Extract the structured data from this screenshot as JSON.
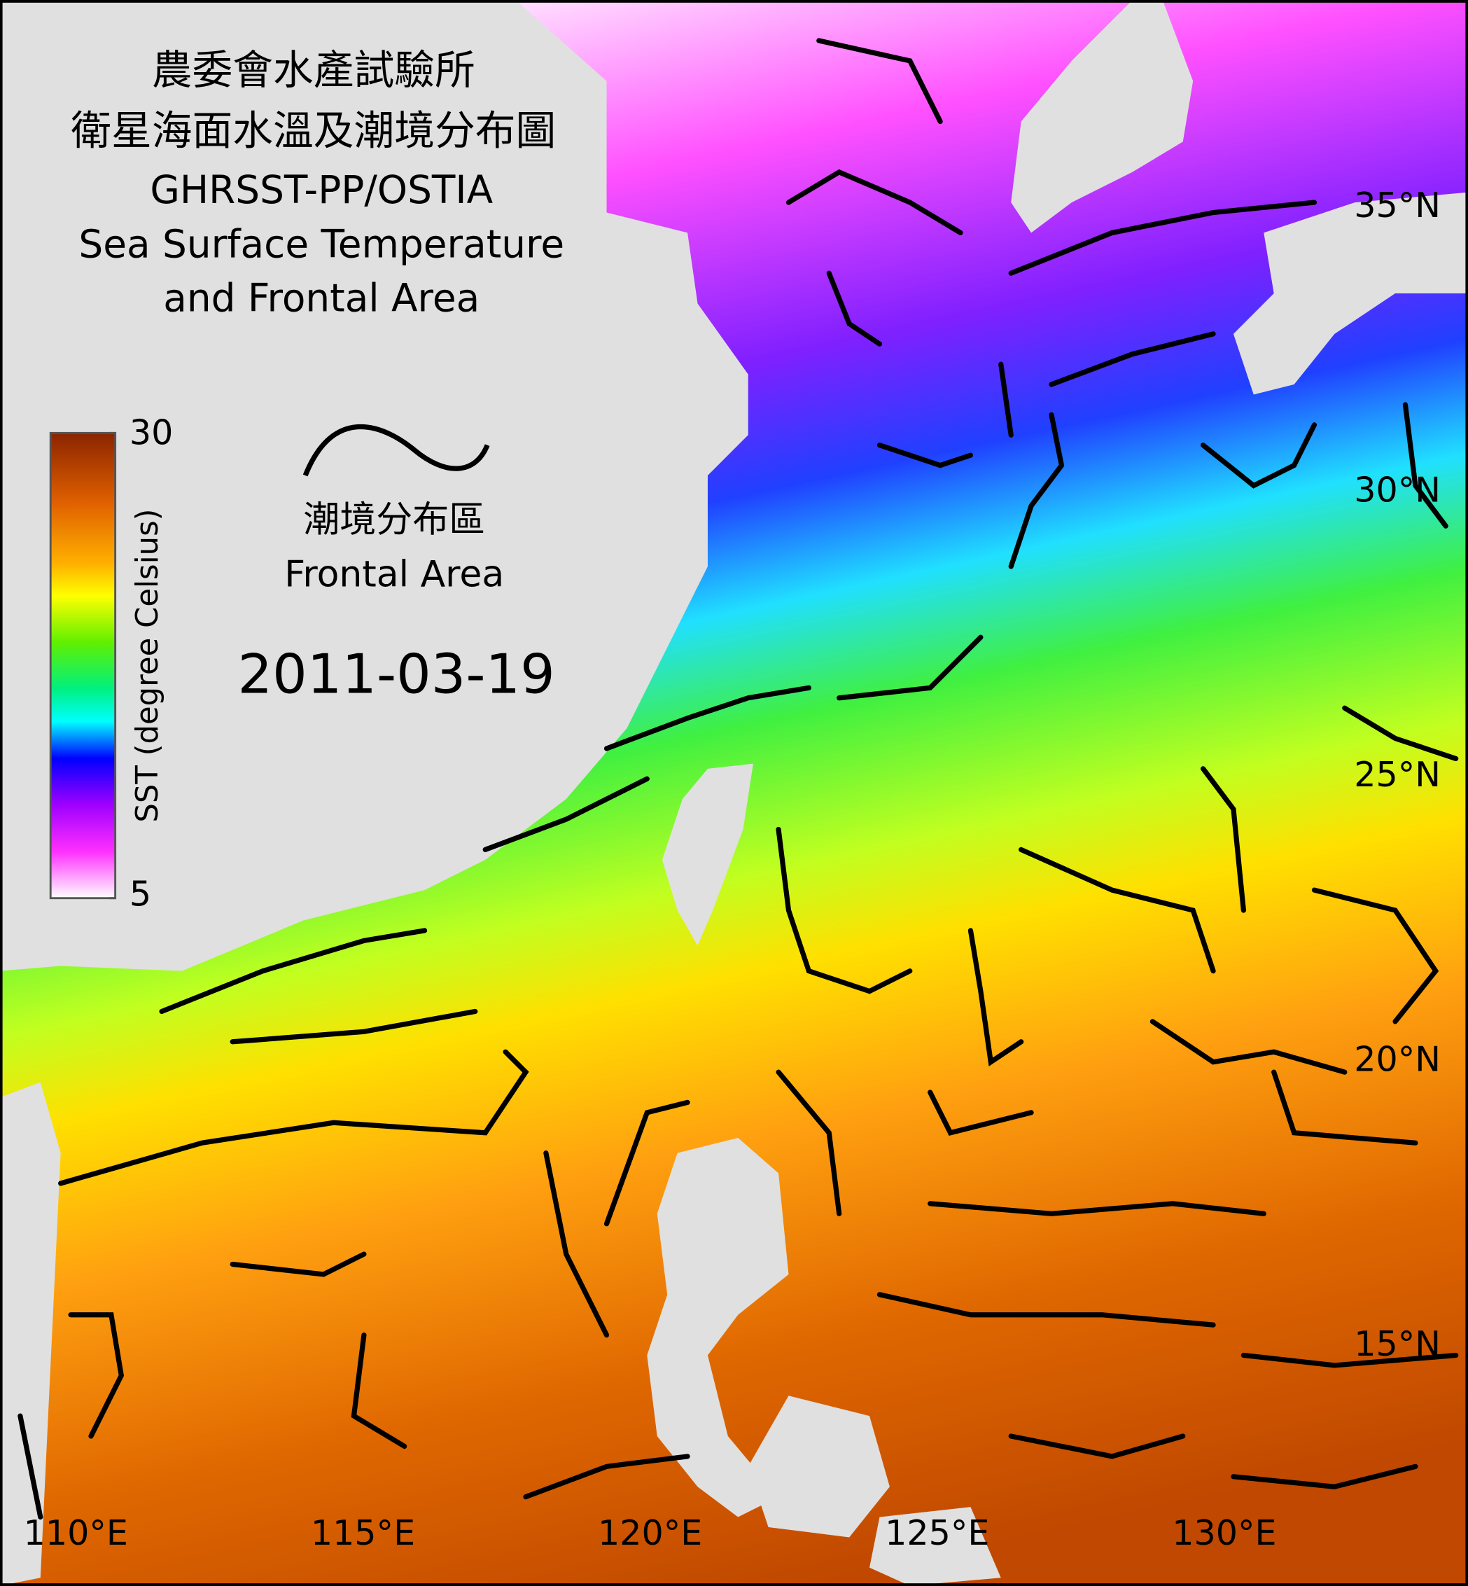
{
  "title": {
    "lines": [
      "農委會水產試驗所",
      "衛星海面水溫及潮境分布圖",
      "GHRSST-PP/OSTIA",
      "Sea Surface Temperature",
      "and Frontal Area"
    ]
  },
  "legend": {
    "zh": "潮境分布區",
    "en": "Frontal Area"
  },
  "colorbar": {
    "label": "SST (degree Celsius)",
    "lim": [
      5,
      30
    ],
    "ticks": [
      5,
      30
    ]
  },
  "date": "2011-03-19",
  "lon_ticks": [
    {
      "value": 110,
      "label": "110°E"
    },
    {
      "value": 115,
      "label": "115°E"
    },
    {
      "value": 120,
      "label": "120°E"
    },
    {
      "value": 125,
      "label": "125°E"
    },
    {
      "value": 130,
      "label": "130°E"
    }
  ],
  "lat_ticks": [
    {
      "value": 35,
      "label": "35°N"
    },
    {
      "value": 30,
      "label": "30°N"
    },
    {
      "value": 25,
      "label": "25°N"
    },
    {
      "value": 20,
      "label": "20°N"
    },
    {
      "value": 15,
      "label": "15°N"
    }
  ]
}
